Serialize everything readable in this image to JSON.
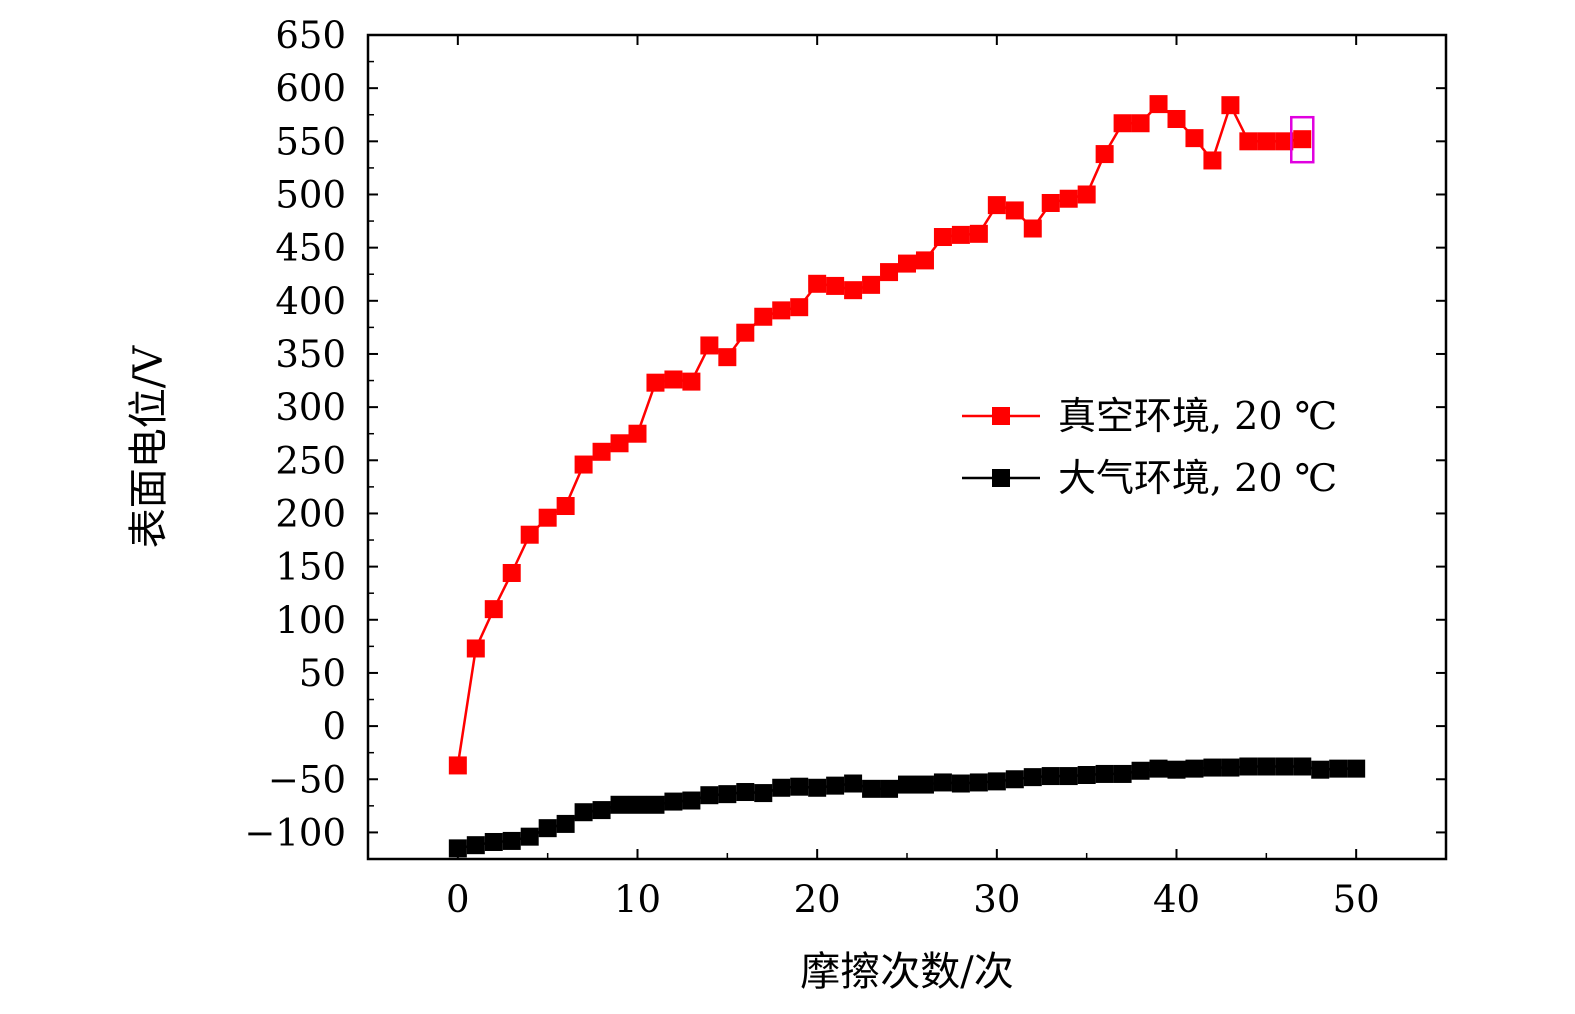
{
  "chart_data": {
    "type": "line",
    "xlabel": "摩擦次数/次",
    "ylabel": "表面电位/V",
    "xlim": [
      -5,
      55
    ],
    "ylim": [
      -125,
      650
    ],
    "xticks": [
      0,
      10,
      20,
      30,
      40,
      50
    ],
    "xtick_labels": [
      "0",
      "10",
      "20",
      "30",
      "40",
      "50"
    ],
    "yticks": [
      650,
      600,
      550,
      500,
      450,
      400,
      350,
      300,
      250,
      200,
      150,
      100,
      50,
      0,
      -50,
      -100
    ],
    "ytick_labels": [
      "650",
      "600",
      "550",
      "500",
      "450",
      "400",
      "350",
      "300",
      "250",
      "200",
      "150",
      "100",
      "50",
      "0",
      "−50",
      "−100"
    ],
    "grid": false,
    "legend_position": "right",
    "highlight_box": {
      "x": 47,
      "y": 552,
      "color": "#e000e0"
    },
    "series": [
      {
        "name": "真空环境, 20 ℃",
        "color": "#ff0000",
        "marker": "square",
        "x": [
          0,
          1,
          2,
          3,
          4,
          5,
          6,
          7,
          8,
          9,
          10,
          11,
          12,
          13,
          14,
          15,
          16,
          17,
          18,
          19,
          20,
          21,
          22,
          23,
          24,
          25,
          26,
          27,
          28,
          29,
          30,
          31,
          32,
          33,
          34,
          35,
          36,
          37,
          38,
          39,
          40,
          41,
          42,
          43,
          44,
          45,
          46,
          47
        ],
        "y": [
          -37,
          73,
          110,
          144,
          180,
          196,
          207,
          246,
          258,
          266,
          275,
          323,
          326,
          324,
          358,
          347,
          370,
          385,
          391,
          394,
          416,
          414,
          410,
          415,
          427,
          435,
          438,
          460,
          462,
          463,
          490,
          485,
          468,
          492,
          496,
          500,
          538,
          567,
          567,
          585,
          571,
          553,
          532,
          584,
          550,
          550,
          550,
          552
        ]
      },
      {
        "name": "大气环境, 20 ℃",
        "color": "#000000",
        "marker": "square",
        "x": [
          0,
          1,
          2,
          3,
          4,
          5,
          6,
          7,
          8,
          9,
          10,
          11,
          12,
          13,
          14,
          15,
          16,
          17,
          18,
          19,
          20,
          21,
          22,
          23,
          24,
          25,
          26,
          27,
          28,
          29,
          30,
          31,
          32,
          33,
          34,
          35,
          36,
          37,
          38,
          39,
          40,
          41,
          42,
          43,
          44,
          45,
          46,
          47,
          48,
          49,
          50
        ],
        "y": [
          -115,
          -112,
          -109,
          -108,
          -104,
          -96,
          -92,
          -81,
          -79,
          -74,
          -74,
          -74,
          -71,
          -70,
          -65,
          -64,
          -62,
          -63,
          -58,
          -57,
          -58,
          -56,
          -54,
          -59,
          -59,
          -55,
          -55,
          -53,
          -54,
          -53,
          -52,
          -50,
          -48,
          -47,
          -47,
          -46,
          -45,
          -45,
          -42,
          -40,
          -41,
          -40,
          -39,
          -39,
          -38,
          -38,
          -38,
          -38,
          -41,
          -40,
          -40
        ]
      }
    ]
  }
}
